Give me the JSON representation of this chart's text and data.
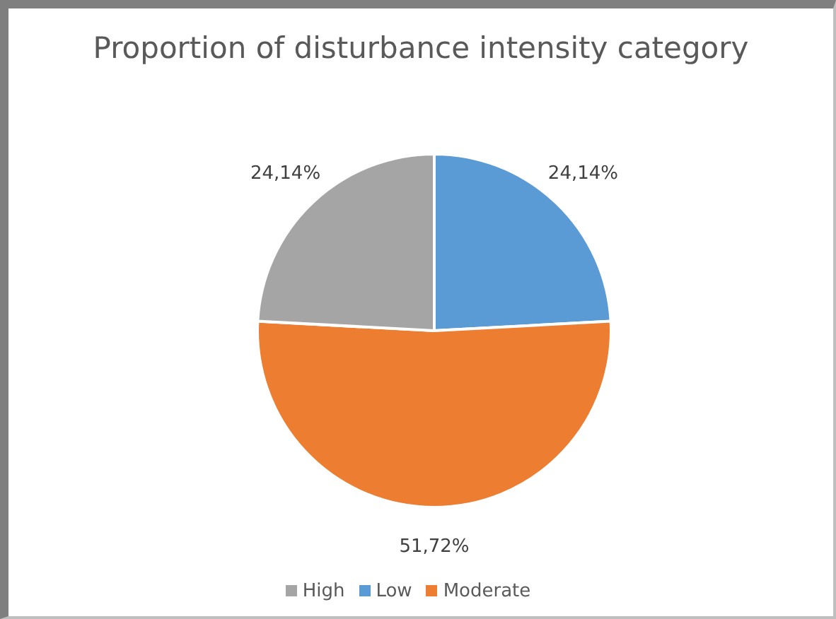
{
  "chart_data": {
    "type": "pie",
    "title": "Proportion of disturbance intensity category",
    "categories": [
      "Low",
      "Moderate",
      "High"
    ],
    "values": [
      24.14,
      51.72,
      24.14
    ],
    "value_labels": [
      "24,14%",
      "51,72%",
      "24,14%"
    ],
    "colors": [
      "#5b9bd5",
      "#ed7d31",
      "#a5a5a5"
    ],
    "legend": "bottom"
  }
}
